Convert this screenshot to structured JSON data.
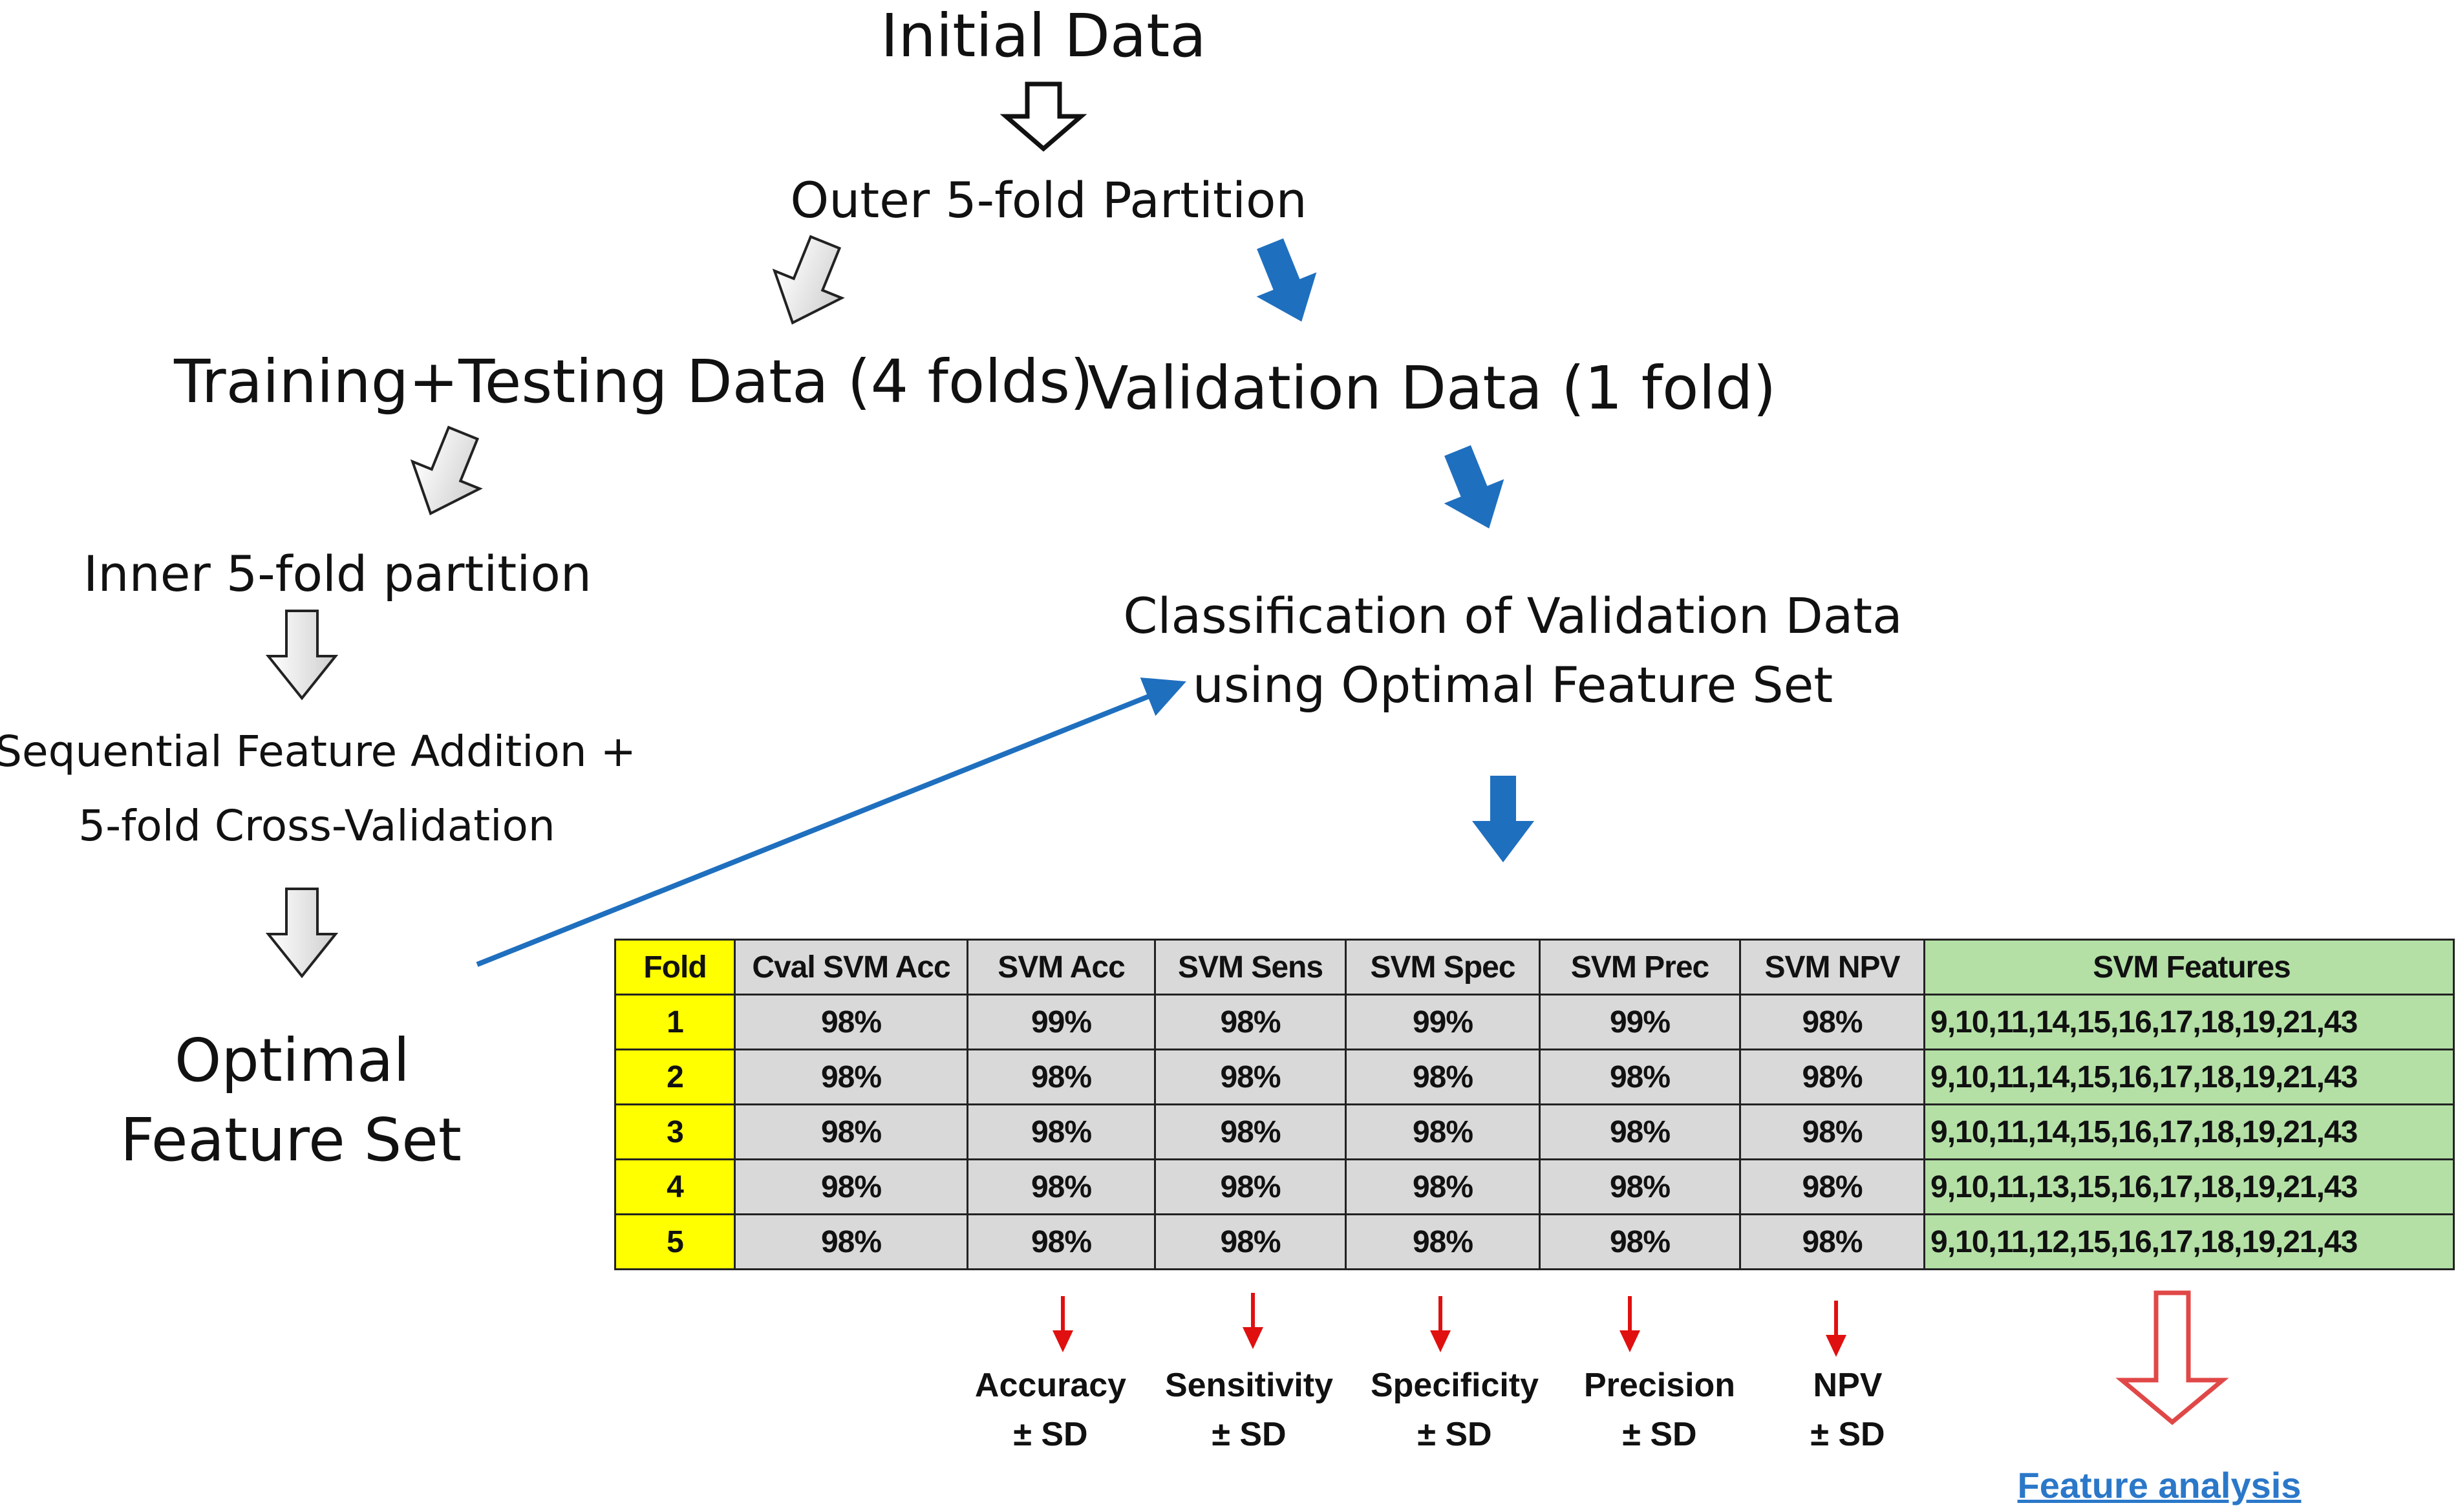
{
  "flow": {
    "initial_data": "Initial Data",
    "outer_partition": "Outer 5-fold Partition",
    "training_data": "Training+Testing Data (4 folds)",
    "validation_data": "Validation Data (1 fold)",
    "inner_partition": "Inner 5-fold partition",
    "sequential_line1": "Sequential Feature Addition +",
    "sequential_line2": "5-fold Cross-Validation",
    "optimal_line1": "Optimal",
    "optimal_line2": "Feature Set",
    "classification_line1": "Classification of Validation Data",
    "classification_line2": "using Optimal Feature Set"
  },
  "table": {
    "headers": [
      "Fold",
      "Cval SVM Acc",
      "SVM Acc",
      "SVM Sens",
      "SVM Spec",
      "SVM Prec",
      "SVM NPV",
      "SVM Features"
    ],
    "rows": [
      [
        "1",
        "98%",
        "99%",
        "98%",
        "99%",
        "99%",
        "98%",
        "9,10,11,14,15,16,17,18,19,21,43"
      ],
      [
        "2",
        "98%",
        "98%",
        "98%",
        "98%",
        "98%",
        "98%",
        "9,10,11,14,15,16,17,18,19,21,43"
      ],
      [
        "3",
        "98%",
        "98%",
        "98%",
        "98%",
        "98%",
        "98%",
        "9,10,11,14,15,16,17,18,19,21,43"
      ],
      [
        "4",
        "98%",
        "98%",
        "98%",
        "98%",
        "98%",
        "98%",
        "9,10,11,13,15,16,17,18,19,21,43"
      ],
      [
        "5",
        "98%",
        "98%",
        "98%",
        "98%",
        "98%",
        "98%",
        "9,10,11,12,15,16,17,18,19,21,43"
      ]
    ]
  },
  "metrics": [
    {
      "name": "Accuracy",
      "sd": "± SD"
    },
    {
      "name": "Sensitivity",
      "sd": "± SD"
    },
    {
      "name": "Specificity",
      "sd": "± SD"
    },
    {
      "name": "Precision",
      "sd": "± SD"
    },
    {
      "name": "NPV",
      "sd": "± SD"
    }
  ],
  "feature_analysis": "Feature analysis",
  "colors": {
    "blue_arrow": "#1f6fbf",
    "red_arrow": "#e01010",
    "fold_col": "#ffff00",
    "features_col": "#b4e0a6",
    "cell_gray": "#d9d9d9",
    "link": "#2b78c9"
  }
}
